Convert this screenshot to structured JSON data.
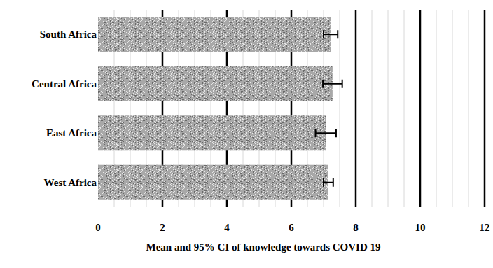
{
  "chart_data": {
    "type": "bar",
    "orientation": "horizontal",
    "x_label": "Mean and 95% CI of knowledge towards COVID 19",
    "categories": [
      "South Africa",
      "Central Africa",
      "East Africa",
      "West Africa"
    ],
    "values": [
      7.22,
      7.28,
      7.07,
      7.15
    ],
    "errors": [
      0.22,
      0.3,
      0.32,
      0.15
    ],
    "color": "#a8a8a8",
    "xlim": [
      0,
      12
    ],
    "xticks": [
      0,
      2,
      4,
      6,
      8,
      10,
      12
    ],
    "grid": true
  }
}
